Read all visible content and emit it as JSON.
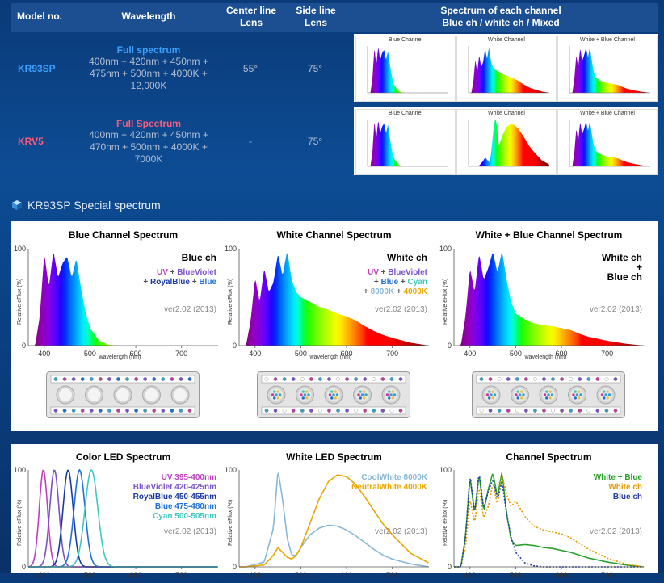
{
  "table": {
    "headers": {
      "model": "Model no.",
      "wavelength": "Wavelength",
      "center": [
        "Center line",
        "Lens"
      ],
      "side": [
        "Side line",
        "Lens"
      ],
      "spectrum": [
        "Spectrum of each channel",
        "Blue ch / white ch / Mixed"
      ]
    },
    "rows": [
      {
        "model": "KR93SP",
        "model_color": "#3aa0ff",
        "type": "Full spectrum",
        "lines": [
          "400nm + 420nm + 450nm +",
          "475nm + 500nm + 4000K +",
          "12,000K"
        ],
        "center": "55°",
        "side": "75°"
      },
      {
        "model": "KRV5",
        "model_color": "#ff5a7a",
        "type": "Full Spectrum",
        "lines": [
          "400nm + 420nm + 450nm +",
          "470nm + 500nm + 4000K +",
          "7000K"
        ],
        "center": "-",
        "side": "75°"
      }
    ],
    "thumb_titles": [
      "Blue Channel",
      "White Channel",
      "White + Blue Channel"
    ]
  },
  "section_title": "KR93SP Special spectrum",
  "common": {
    "ylabel": "Relative eFlux (%)",
    "xlabel": "wavelength (nm)",
    "version": "ver2.02 (2013)",
    "xticks": [
      "400",
      "500",
      "600",
      "700"
    ],
    "yticks": [
      "0",
      "100"
    ]
  },
  "panels_top": [
    {
      "title": "Blue Channel Spectrum",
      "legend_head": "Blue ch",
      "legend": [
        [
          "UV + BlueViolet"
        ],
        [
          "+ RoyalBlue + Blue"
        ]
      ]
    },
    {
      "title": "White Channel Spectrum",
      "legend_head": "White ch",
      "legend": [
        [
          "UV + BlueViolet"
        ],
        [
          "+ Blue + Cyan"
        ],
        [
          "+ 8000K + 4000K"
        ]
      ]
    },
    {
      "title": "White + Blue Channel Spectrum",
      "legend_head": "White ch\n+\nBlue ch",
      "legend": []
    }
  ],
  "panels_bottom": [
    {
      "title": "Color LED Spectrum",
      "legend": [
        "UV 395-400nm",
        "BlueViolet 420-425nm",
        "RoyalBlue 450-455nm",
        "Blue 475-480nm",
        "Cyan 500-505nm"
      ]
    },
    {
      "title": "White LED Spectrum",
      "legend": [
        "CoolWhite 8000K",
        "NeutralWhite 4000K"
      ]
    },
    {
      "title": "Channel Spectrum",
      "legend": [
        "White + Blue",
        "White ch",
        "Blue ch"
      ]
    }
  ],
  "colors": {
    "uv": "#c040c0",
    "blueviolet": "#7b52c8",
    "royalblue": "#1a3aa0",
    "blue": "#1e6fd8",
    "cyan": "#40c8c0",
    "coolwhite": "#88b8d8",
    "neutralwhite": "#e8a800",
    "green": "#2aa02a",
    "orange": "#e89a00",
    "navy": "#2a3ea0",
    "kr93": "#3aa0ff",
    "krv5": "#ff5a7a"
  },
  "chart_data": [
    {
      "type": "area",
      "title": "Blue Channel Spectrum",
      "xlabel": "wavelength (nm)",
      "ylabel": "Relative eFlux (%)",
      "xlim": [
        365,
        780
      ],
      "ylim": [
        0,
        100
      ],
      "series": [
        {
          "name": "Blue ch",
          "x": [
            380,
            390,
            400,
            410,
            420,
            430,
            440,
            450,
            460,
            470,
            480,
            490,
            500,
            520,
            540,
            560,
            600,
            700
          ],
          "y": [
            0,
            30,
            95,
            60,
            98,
            70,
            85,
            92,
            70,
            90,
            60,
            35,
            18,
            5,
            1,
            0,
            0,
            0
          ]
        }
      ]
    },
    {
      "type": "area",
      "title": "White Channel Spectrum",
      "xlabel": "wavelength (nm)",
      "ylabel": "Relative eFlux (%)",
      "xlim": [
        365,
        780
      ],
      "ylim": [
        0,
        100
      ],
      "series": [
        {
          "name": "White ch",
          "x": [
            380,
            390,
            400,
            410,
            420,
            430,
            440,
            450,
            460,
            470,
            480,
            490,
            500,
            520,
            540,
            560,
            580,
            600,
            620,
            640,
            660,
            680,
            700,
            740,
            780
          ],
          "y": [
            0,
            25,
            70,
            45,
            80,
            55,
            65,
            95,
            72,
            98,
            68,
            55,
            50,
            45,
            40,
            37,
            33,
            30,
            26,
            20,
            15,
            11,
            8,
            3,
            0
          ]
        }
      ]
    },
    {
      "type": "area",
      "title": "White + Blue Channel Spectrum",
      "xlabel": "wavelength (nm)",
      "ylabel": "Relative eFlux (%)",
      "xlim": [
        365,
        780
      ],
      "ylim": [
        0,
        100
      ],
      "series": [
        {
          "name": "White ch + Blue ch",
          "x": [
            380,
            390,
            400,
            410,
            420,
            430,
            440,
            450,
            460,
            470,
            480,
            490,
            500,
            520,
            540,
            560,
            580,
            600,
            620,
            640,
            660,
            680,
            700,
            740,
            780
          ],
          "y": [
            0,
            30,
            80,
            55,
            95,
            68,
            80,
            97,
            75,
            98,
            68,
            45,
            33,
            27,
            23,
            21,
            20,
            18,
            16,
            12,
            9,
            7,
            5,
            2,
            0
          ]
        }
      ]
    },
    {
      "type": "line",
      "title": "Color LED Spectrum",
      "xlabel": "wavelength (nm)",
      "ylabel": "Relative eFlux (%)",
      "xlim": [
        365,
        780
      ],
      "ylim": [
        0,
        100
      ],
      "series": [
        {
          "name": "UV 395-400nm",
          "center": 398,
          "width": 9,
          "peak": 100
        },
        {
          "name": "BlueViolet 420-425nm",
          "center": 422,
          "width": 10,
          "peak": 100
        },
        {
          "name": "RoyalBlue 450-455nm",
          "center": 452,
          "width": 11,
          "peak": 100
        },
        {
          "name": "Blue 475-480nm",
          "center": 477,
          "width": 12,
          "peak": 100
        },
        {
          "name": "Cyan 500-505nm",
          "center": 503,
          "width": 14,
          "peak": 100
        }
      ]
    },
    {
      "type": "line",
      "title": "White LED Spectrum",
      "xlabel": "wavelength (nm)",
      "ylabel": "Relative eFlux (%)",
      "xlim": [
        365,
        780
      ],
      "ylim": [
        0,
        100
      ],
      "series": [
        {
          "name": "CoolWhite 8000K",
          "x": [
            380,
            420,
            440,
            450,
            460,
            470,
            480,
            490,
            500,
            520,
            540,
            560,
            580,
            600,
            620,
            640,
            660,
            680,
            700,
            740,
            780
          ],
          "y": [
            0,
            5,
            40,
            100,
            70,
            30,
            12,
            12,
            20,
            33,
            40,
            43,
            42,
            38,
            32,
            25,
            18,
            12,
            8,
            3,
            0
          ]
        },
        {
          "name": "NeutralWhite 4000K",
          "x": [
            380,
            420,
            440,
            450,
            460,
            470,
            480,
            490,
            500,
            520,
            540,
            560,
            580,
            600,
            620,
            640,
            660,
            680,
            700,
            740,
            780
          ],
          "y": [
            0,
            2,
            12,
            20,
            15,
            10,
            8,
            12,
            20,
            45,
            70,
            88,
            95,
            93,
            85,
            72,
            58,
            44,
            33,
            14,
            4
          ]
        }
      ]
    },
    {
      "type": "line",
      "title": "Channel Spectrum",
      "xlabel": "wavelength (nm)",
      "ylabel": "Relative eFlux (%)",
      "xlim": [
        365,
        780
      ],
      "ylim": [
        0,
        100
      ],
      "series": [
        {
          "name": "White + Blue",
          "x": [
            380,
            390,
            400,
            410,
            420,
            430,
            440,
            450,
            460,
            470,
            480,
            490,
            500,
            520,
            540,
            560,
            580,
            600,
            620,
            640,
            660,
            700,
            740,
            780
          ],
          "y": [
            0,
            30,
            93,
            55,
            95,
            58,
            80,
            97,
            72,
            98,
            55,
            28,
            22,
            23,
            22,
            20,
            19,
            17,
            15,
            12,
            9,
            5,
            2,
            0
          ]
        },
        {
          "name": "White ch",
          "x": [
            380,
            390,
            400,
            410,
            420,
            430,
            440,
            450,
            460,
            470,
            480,
            490,
            500,
            520,
            540,
            560,
            580,
            600,
            620,
            640,
            660,
            700,
            740,
            780
          ],
          "y": [
            0,
            20,
            70,
            45,
            82,
            50,
            62,
            86,
            64,
            95,
            75,
            62,
            68,
            52,
            42,
            38,
            36,
            34,
            30,
            24,
            18,
            9,
            3,
            0
          ]
        },
        {
          "name": "Blue ch",
          "x": [
            380,
            390,
            400,
            410,
            420,
            430,
            440,
            450,
            460,
            470,
            480,
            490,
            500,
            520,
            540,
            560,
            580,
            600,
            700
          ],
          "y": [
            0,
            30,
            95,
            55,
            97,
            60,
            78,
            90,
            70,
            88,
            55,
            30,
            15,
            4,
            1,
            0,
            0,
            0,
            0
          ]
        }
      ]
    }
  ]
}
